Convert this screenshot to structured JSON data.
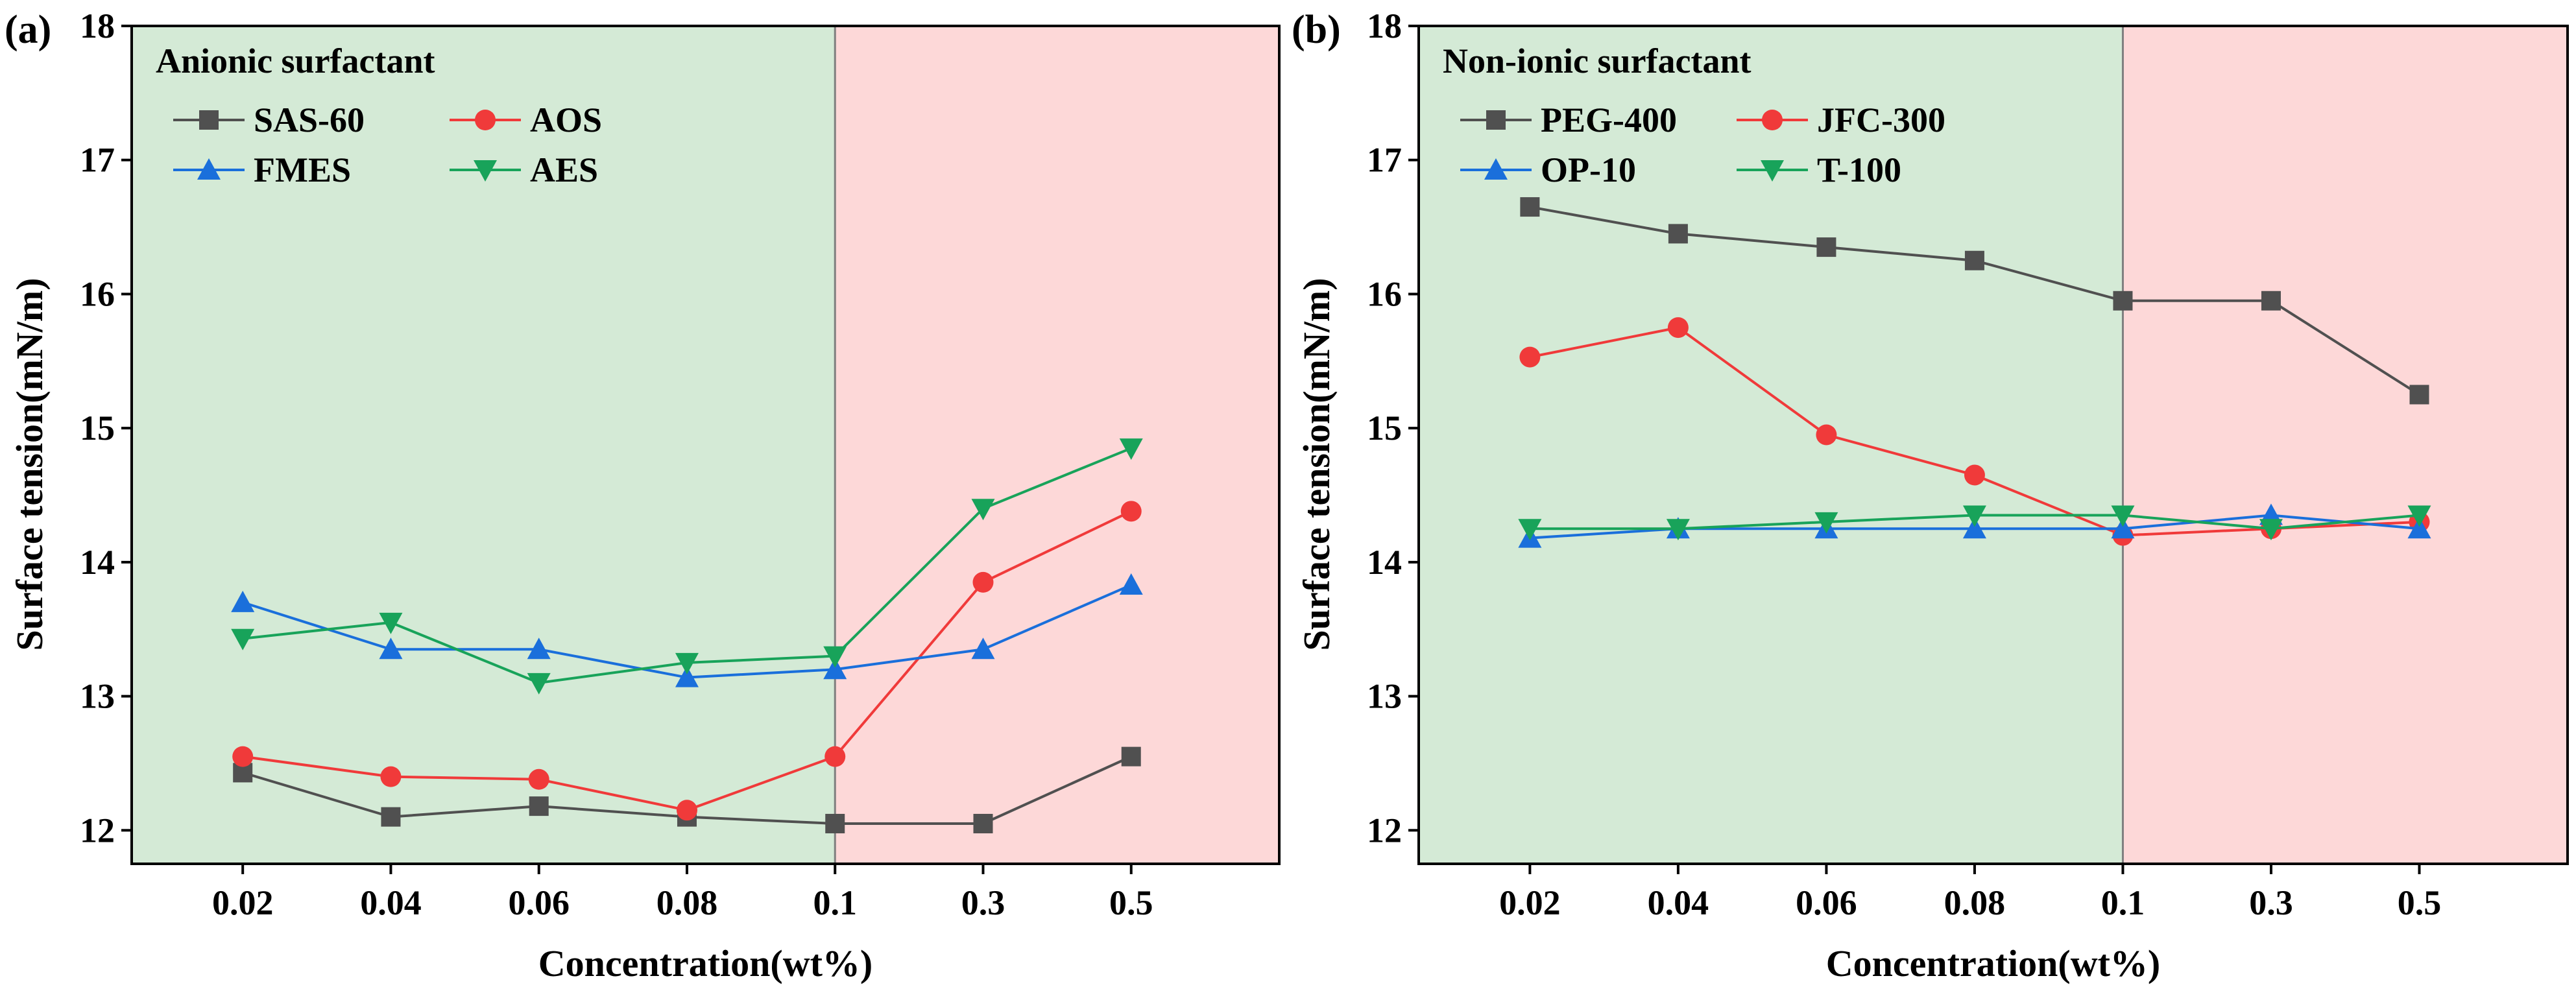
{
  "chart_data": [
    {
      "type": "line",
      "panel_label": "(a)",
      "title": "Anionic surfactant",
      "xlabel": "Concentration(wt%)",
      "ylabel": "Surface tension(mN/m)",
      "categories": [
        "0.02",
        "0.04",
        "0.06",
        "0.08",
        "0.1",
        "0.3",
        "0.5"
      ],
      "ylim": [
        11.75,
        18
      ],
      "yticks": [
        "12",
        "13",
        "14",
        "15",
        "16",
        "17",
        "18"
      ],
      "regions": [
        {
          "name": "low-concentration",
          "from_category": "0.02",
          "to_category": "0.1",
          "color": "#d4ead6"
        },
        {
          "name": "high-concentration",
          "from_category": "0.1",
          "to_category": "0.5",
          "color": "#fdd8d8"
        }
      ],
      "divider_at": "0.1",
      "series": [
        {
          "name": "SAS-60",
          "color": "#505050",
          "marker": "square",
          "values": [
            12.43,
            12.1,
            12.18,
            12.1,
            12.05,
            12.05,
            12.55
          ]
        },
        {
          "name": "AOS",
          "color": "#f03a3a",
          "marker": "circle",
          "values": [
            12.55,
            12.4,
            12.38,
            12.15,
            12.55,
            13.85,
            14.38
          ]
        },
        {
          "name": "FMES",
          "color": "#1a6fdb",
          "marker": "triangle-up",
          "values": [
            13.7,
            13.35,
            13.35,
            13.14,
            13.2,
            13.35,
            13.83
          ]
        },
        {
          "name": "AES",
          "color": "#18a35a",
          "marker": "triangle-down",
          "values": [
            13.43,
            13.55,
            13.1,
            13.25,
            13.3,
            14.4,
            14.85
          ]
        }
      ]
    },
    {
      "type": "line",
      "panel_label": "(b)",
      "title": "Non-ionic surfactant",
      "xlabel": "Concentration(wt%)",
      "ylabel": "Surface tension(mN/m)",
      "categories": [
        "0.02",
        "0.04",
        "0.06",
        "0.08",
        "0.1",
        "0.3",
        "0.5"
      ],
      "ylim": [
        11.75,
        18
      ],
      "yticks": [
        "12",
        "13",
        "14",
        "15",
        "16",
        "17",
        "18"
      ],
      "regions": [
        {
          "name": "low-concentration",
          "from_category": "0.02",
          "to_category": "0.1",
          "color": "#d4ead6"
        },
        {
          "name": "high-concentration",
          "from_category": "0.1",
          "to_category": "0.5",
          "color": "#fdd8d8"
        }
      ],
      "divider_at": "0.1",
      "series": [
        {
          "name": "PEG-400",
          "color": "#505050",
          "marker": "square",
          "values": [
            16.65,
            16.45,
            16.35,
            16.25,
            15.95,
            15.95,
            15.25
          ]
        },
        {
          "name": "JFC-300",
          "color": "#f03a3a",
          "marker": "circle",
          "values": [
            15.53,
            15.75,
            14.95,
            14.65,
            14.2,
            14.25,
            14.3
          ]
        },
        {
          "name": "OP-10",
          "color": "#1a6fdb",
          "marker": "triangle-up",
          "values": [
            14.18,
            14.25,
            14.25,
            14.25,
            14.25,
            14.35,
            14.25
          ]
        },
        {
          "name": "T-100",
          "color": "#18a35a",
          "marker": "triangle-down",
          "values": [
            14.25,
            14.25,
            14.3,
            14.35,
            14.35,
            14.25,
            14.35
          ]
        }
      ]
    }
  ]
}
